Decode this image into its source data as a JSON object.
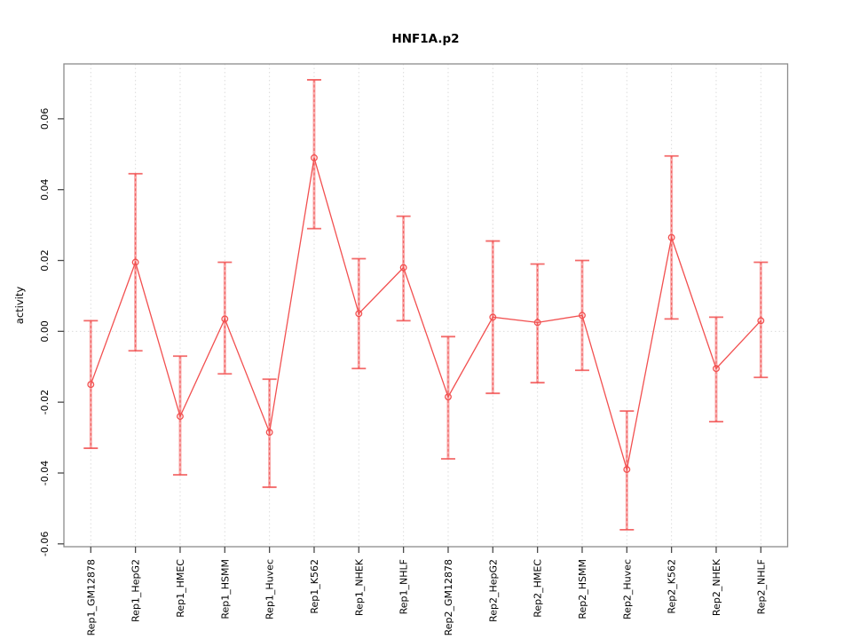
{
  "figure": {
    "title": "HNF1A.p2"
  },
  "chart_data": {
    "type": "line",
    "title": "HNF1A.p2",
    "xlabel": "",
    "ylabel": "activity",
    "legend_position": "none",
    "grid": "vertical dotted gridlines at each category plus dotted horizontal line at y=0",
    "ylim": [
      -0.0608,
      0.0755
    ],
    "yticks": [
      -0.06,
      -0.04,
      -0.02,
      0.0,
      0.02,
      0.04,
      0.06
    ],
    "ytick_labels": [
      "-0.06",
      "-0.04",
      "-0.02",
      "0.00",
      "0.02",
      "0.04",
      "0.06"
    ],
    "categories": [
      "Rep1_GM12878",
      "Rep1_HepG2",
      "Rep1_HMEC",
      "Rep1_HSMM",
      "Rep1_Huvec",
      "Rep1_K562",
      "Rep1_NHEK",
      "Rep1_NHLF",
      "Rep2_GM12878",
      "Rep2_HepG2",
      "Rep2_HMEC",
      "Rep2_HSMM",
      "Rep2_Huvec",
      "Rep2_K562",
      "Rep2_NHEK",
      "Rep2_NHLF"
    ],
    "series": [
      {
        "name": "activity",
        "marker": "open-circle",
        "values": [
          -0.015,
          0.0195,
          -0.024,
          0.0035,
          -0.0285,
          0.049,
          0.005,
          0.018,
          -0.0185,
          0.004,
          0.0025,
          0.0045,
          -0.039,
          0.0265,
          -0.0105,
          0.003
        ],
        "error_upper": [
          0.003,
          0.0445,
          -0.007,
          0.0195,
          -0.0135,
          0.071,
          0.0205,
          0.0325,
          -0.0015,
          0.0255,
          0.019,
          0.02,
          -0.0225,
          0.0495,
          0.004,
          0.0195
        ],
        "error_lower": [
          -0.033,
          -0.0055,
          -0.0405,
          -0.012,
          -0.044,
          0.029,
          -0.0105,
          0.003,
          -0.036,
          -0.0175,
          -0.0145,
          -0.011,
          -0.056,
          0.0035,
          -0.0255,
          -0.013
        ]
      }
    ],
    "colors": {
      "line": "#F25050",
      "marker": "#F25050",
      "error_band": "#F8ABAB",
      "error_dash": "#F25050",
      "grid": "#DCDCDC",
      "frame": "#8C8C8C",
      "tick": "#4A4A4A",
      "text": "#000000",
      "background": "#FFFFFF"
    }
  }
}
